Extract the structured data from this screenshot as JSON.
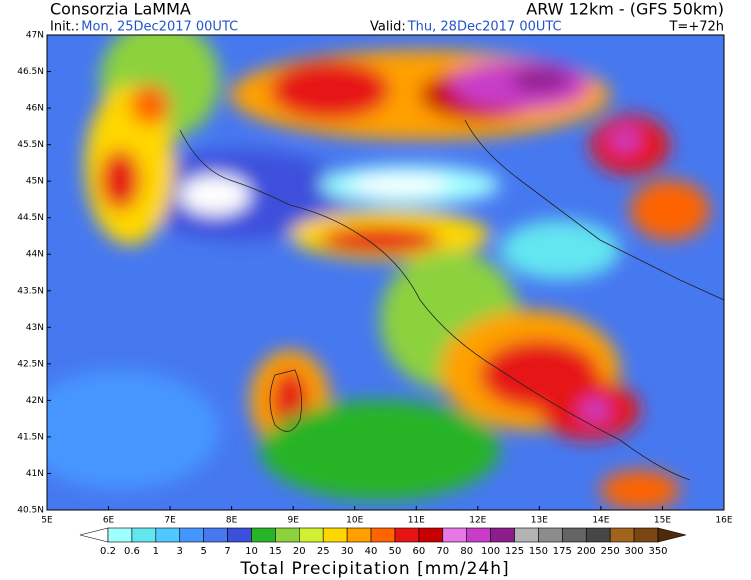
{
  "header": {
    "title": "Consorzia LaMMA",
    "model": "ARW 12km - (GFS 50km)",
    "init_label": "Init.:",
    "init_value": "Mon, 25Dec2017 00UTC",
    "valid_label": "Valid:",
    "valid_value": "Thu, 28Dec2017 00UTC",
    "lead": "T=+72h"
  },
  "map": {
    "lat_labels": [
      "47N",
      "46.5N",
      "46N",
      "45.5N",
      "45N",
      "44.5N",
      "44N",
      "43.5N",
      "43N",
      "42.5N",
      "42N",
      "41.5N",
      "41N",
      "40.5N"
    ],
    "lon_labels": [
      "5E",
      "6E",
      "7E",
      "8E",
      "9E",
      "10E",
      "11E",
      "12E",
      "13E",
      "14E",
      "15E",
      "16E"
    ]
  },
  "legend": {
    "title": "Total Precipitation [mm/24h]",
    "levels": [
      "0.2",
      "0.6",
      "1",
      "3",
      "5",
      "7",
      "10",
      "15",
      "20",
      "25",
      "30",
      "40",
      "50",
      "60",
      "70",
      "80",
      "100",
      "125",
      "150",
      "175",
      "200",
      "250",
      "300",
      "350"
    ],
    "colors": [
      "#ffffff",
      "#a0ffff",
      "#64e6f0",
      "#50c8ff",
      "#4696ff",
      "#4678f0",
      "#3c50dc",
      "#28b428",
      "#8cd23c",
      "#d2f032",
      "#ffd700",
      "#ffa000",
      "#ff6400",
      "#e61414",
      "#c80000",
      "#e678e6",
      "#c83cc8",
      "#8c1e8c",
      "#b4b4b4",
      "#8c8c8c",
      "#646464",
      "#464646",
      "#a0641e",
      "#7a4614",
      "#50280a"
    ]
  }
}
